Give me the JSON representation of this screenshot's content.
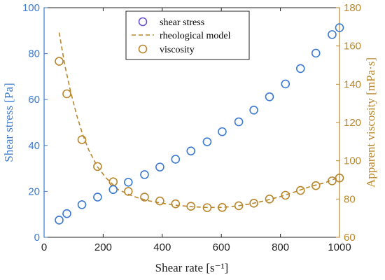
{
  "chart_data": {
    "type": "scatter",
    "xlabel": "Shear rate [s⁻¹]",
    "ylabel_left": "Shear stress [Pa]",
    "ylabel_right": "Apparent viscosity [mPa·s]",
    "xlim": [
      0,
      1000
    ],
    "ylim_left": [
      0,
      100
    ],
    "ylim_right": [
      60,
      180
    ],
    "xticks": [
      0,
      200,
      400,
      600,
      800,
      1000
    ],
    "yticks_left": [
      0,
      20,
      40,
      60,
      80,
      100
    ],
    "yticks_right": [
      60,
      80,
      100,
      120,
      140,
      160,
      180
    ],
    "grid": false,
    "legend_position": "top-center",
    "colors": {
      "stress": "#3a7ad1",
      "viscosity": "#b8862b"
    },
    "series": [
      {
        "name": "shear stress",
        "axis": "left",
        "marker": "circle",
        "x": [
          51,
          77,
          128,
          181,
          234,
          285,
          340,
          392,
          445,
          497,
          552,
          603,
          659,
          710,
          763,
          817,
          868,
          920,
          975,
          1000
        ],
        "y": [
          7.5,
          10.3,
          14.2,
          17.5,
          20.8,
          24.0,
          27.3,
          30.6,
          34.0,
          37.6,
          41.6,
          46.0,
          50.3,
          55.4,
          61.2,
          66.8,
          73.5,
          80.2,
          88.3,
          91.3
        ]
      },
      {
        "name": "rheological model",
        "axis": "right",
        "line_style": "dashed",
        "x": [
          51,
          70,
          90,
          110,
          130,
          150,
          180,
          210,
          250,
          300,
          350,
          400,
          450,
          500,
          550,
          600,
          650,
          700,
          750,
          800,
          850,
          900,
          950,
          1000
        ],
        "y": [
          167,
          150,
          136,
          124,
          114,
          106,
          97,
          91,
          85,
          81.5,
          79.2,
          77.8,
          76.7,
          76.0,
          75.6,
          75.6,
          76.3,
          77.5,
          79.2,
          81.3,
          83.8,
          86.5,
          88.5,
          91.5
        ]
      },
      {
        "name": "viscosity",
        "axis": "right",
        "marker": "circle",
        "x": [
          51,
          77,
          128,
          181,
          234,
          285,
          340,
          392,
          445,
          497,
          552,
          603,
          659,
          710,
          763,
          817,
          868,
          920,
          975,
          1000
        ],
        "y": [
          152,
          135,
          111,
          97,
          89,
          84,
          81,
          79,
          77.5,
          76.2,
          75.5,
          75.6,
          76.5,
          77.8,
          80,
          82,
          84.5,
          87,
          89.5,
          91
        ]
      }
    ]
  }
}
